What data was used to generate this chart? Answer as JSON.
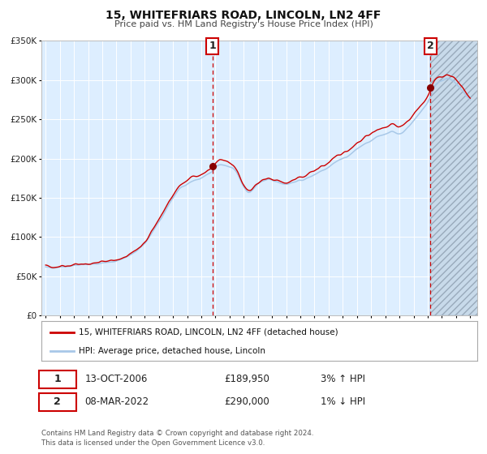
{
  "title_line1": "15, WHITEFRIARS ROAD, LINCOLN, LN2 4FF",
  "title_line2": "Price paid vs. HM Land Registry's House Price Index (HPI)",
  "ylim": [
    0,
    350000
  ],
  "yticks": [
    0,
    50000,
    100000,
    150000,
    200000,
    250000,
    300000,
    350000
  ],
  "ytick_labels": [
    "£0",
    "£50K",
    "£100K",
    "£150K",
    "£200K",
    "£250K",
    "£300K",
    "£350K"
  ],
  "xlim_start": 1994.7,
  "xlim_end": 2025.5,
  "xticks": [
    1995,
    1996,
    1997,
    1998,
    1999,
    2000,
    2001,
    2002,
    2003,
    2004,
    2005,
    2006,
    2007,
    2008,
    2009,
    2010,
    2011,
    2012,
    2013,
    2014,
    2015,
    2016,
    2017,
    2018,
    2019,
    2020,
    2021,
    2022,
    2023,
    2024,
    2025
  ],
  "hpi_color": "#a8c8e8",
  "sale_color": "#cc0000",
  "dot_color": "#880000",
  "background_plot": "#ddeeff",
  "sale1_x": 2006.79,
  "sale1_y": 189950,
  "sale1_label_date": "13-OCT-2006",
  "sale1_label_price": "£189,950",
  "sale1_label_hpi": "3% ↑ HPI",
  "sale2_x": 2022.19,
  "sale2_y": 290000,
  "sale2_label_date": "08-MAR-2022",
  "sale2_label_price": "£290,000",
  "sale2_label_hpi": "1% ↓ HPI",
  "vline_color": "#cc0000",
  "legend_sale_label": "15, WHITEFRIARS ROAD, LINCOLN, LN2 4FF (detached house)",
  "legend_hpi_label": "HPI: Average price, detached house, Lincoln",
  "footer_line1": "Contains HM Land Registry data © Crown copyright and database right 2024.",
  "footer_line2": "This data is licensed under the Open Government Licence v3.0.",
  "grid_color": "#ffffff",
  "hatch_region_start": 2022.19,
  "hatch_region_end": 2025.5
}
